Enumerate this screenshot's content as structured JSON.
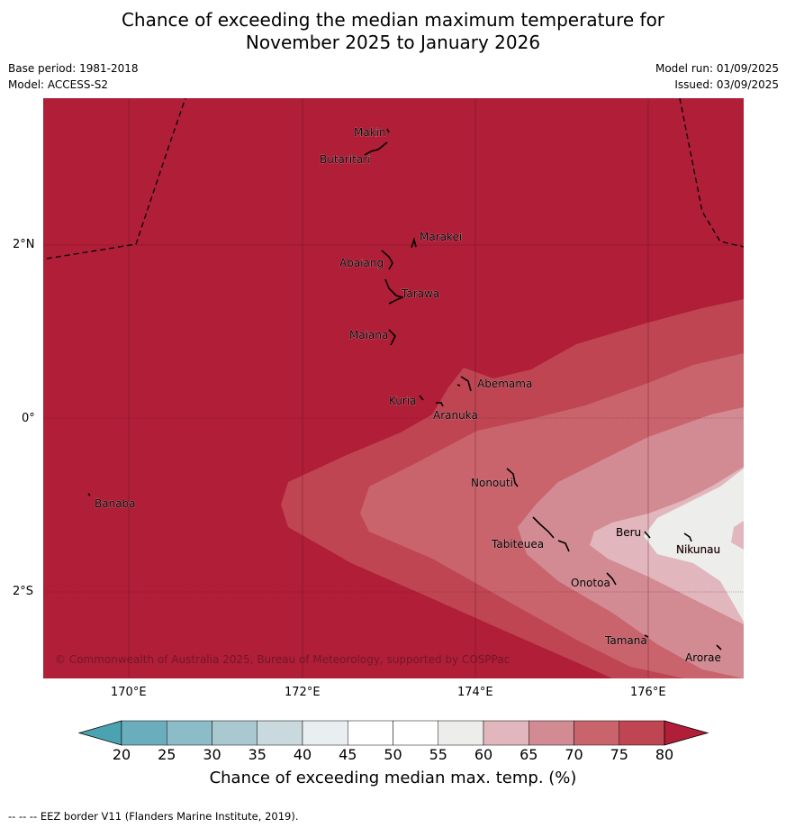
{
  "title_line1": "Chance of exceeding the median maximum temperature for",
  "title_line2": "November 2025 to January 2026",
  "base_period": "Base period: 1981-2018",
  "model": "Model: ACCESS-S2",
  "model_run": "Model run: 01/09/2025",
  "issued": "Issued: 03/09/2025",
  "lat_labels": [
    "2°N",
    "0°",
    "2°S"
  ],
  "lon_labels": [
    "170°E",
    "172°E",
    "174°E",
    "176°E"
  ],
  "places": [
    "Makin",
    "Butaritari",
    "Marakei",
    "Abaiang",
    "Tarawa",
    "Maiana",
    "Abemama",
    "Kuria",
    "Aranuka",
    "Nonouti",
    "Banaba",
    "Tabiteuea",
    "Beru",
    "Nikunau",
    "Onotoa",
    "Tamana",
    "Arorae"
  ],
  "copyright": "© Commonwealth of Australia 2025, Bureau of Meteorology, supported by COSPPac",
  "colorbar": {
    "ticks": [
      "20",
      "25",
      "30",
      "35",
      "40",
      "45",
      "50",
      "55",
      "60",
      "65",
      "70",
      "75",
      "80"
    ],
    "colors": [
      "#6aaebd",
      "#8bbcc8",
      "#a9c8cf",
      "#c9d9dd",
      "#e9eff1",
      "#ffffff",
      "#ffffff",
      "#ededeb",
      "#e1b7bd",
      "#d38b93",
      "#c9646d",
      "#bf4552"
    ],
    "under_color": "#4ba3b2",
    "over_color": "#b01e38",
    "title": "Chance of exceeding median max. temp. (%)"
  },
  "footer": "--  --  -- EEZ border V11 (Flanders Marine Institute, 2019).",
  "colors": {
    "ge80": "#b01e38",
    "c75_80": "#bf4552",
    "c70_75": "#c9646d",
    "c65_70": "#d38b93",
    "c60_65": "#e1b7bd",
    "c55_60": "#ededeb"
  }
}
